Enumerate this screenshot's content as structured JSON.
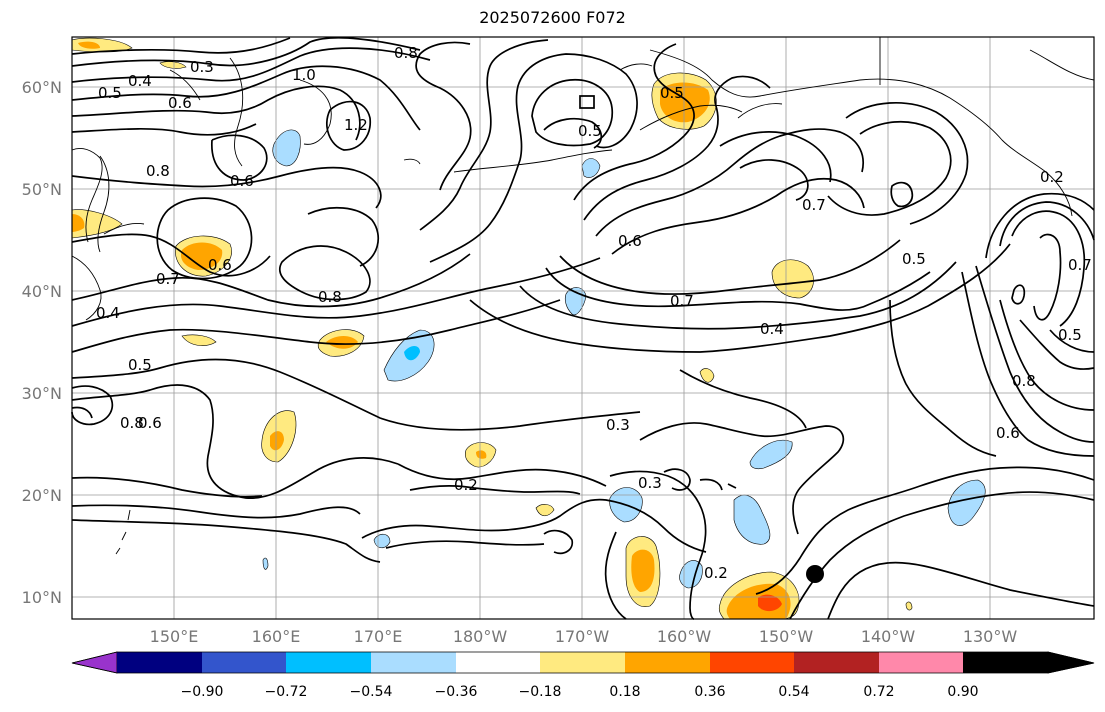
{
  "title": "2025072600 F072",
  "lat_labels": [
    "60°N",
    "50°N",
    "40°N",
    "30°N",
    "20°N",
    "10°N"
  ],
  "lon_labels": [
    "150°E",
    "160°E",
    "170°E",
    "180°W",
    "170°W",
    "160°W",
    "150°W",
    "140°W",
    "130°W"
  ],
  "colorbar": {
    "tick_labels": [
      "−0.90",
      "−0.72",
      "−0.54",
      "−0.36",
      "−0.18",
      "0.18",
      "0.36",
      "0.54",
      "0.72",
      "0.90"
    ],
    "colors": [
      "#9933cc",
      "#000080",
      "#3355cc",
      "#00bfff",
      "#aaddff",
      "#ffffff",
      "#ffea80",
      "#ffa500",
      "#ff4500",
      "#b22222",
      "#ff88aa"
    ]
  },
  "contour_labels": [
    "0.3",
    "0.4",
    "0.5",
    "0.6",
    "0.8",
    "1.0",
    "1.2",
    "0.5",
    "0.8",
    "0.6",
    "0.6",
    "0.7",
    "0.8",
    "0.4",
    "0.5",
    "0.8",
    "0.6",
    "0.5",
    "0.6",
    "0.7",
    "0.4",
    "0.7",
    "0.5",
    "0.2",
    "0.7",
    "0.5",
    "0.8",
    "0.6",
    "0.3",
    "0.3",
    "0.2",
    "0.2"
  ],
  "marker": "storm-center-dot"
}
